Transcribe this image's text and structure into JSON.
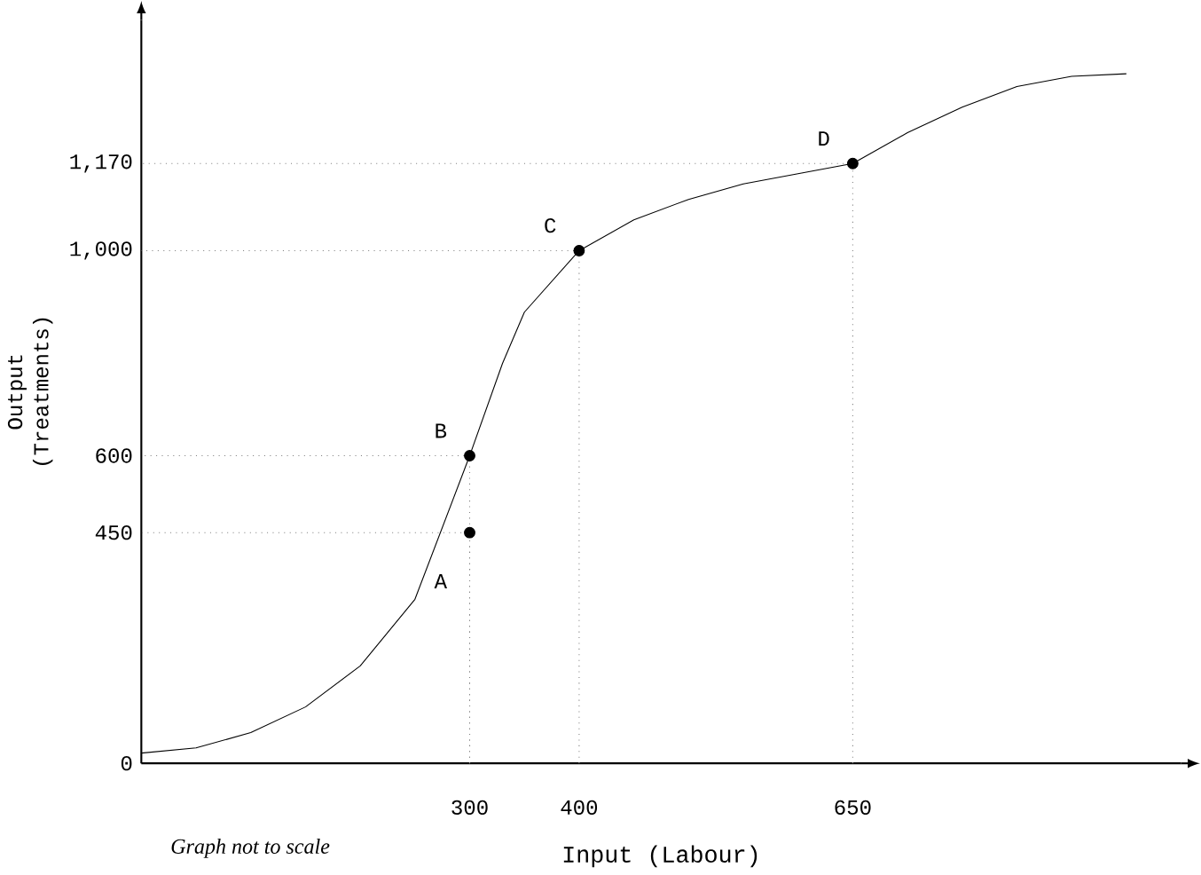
{
  "chart_data": {
    "type": "line",
    "xlabel": "Input (Labour)",
    "ylabel": "Output\n(Treatments)",
    "xlim": [
      0,
      950
    ],
    "ylim": [
      0,
      1450
    ],
    "xticks": [
      300,
      400,
      650
    ],
    "yticks": [
      0,
      450,
      600,
      {
        "value": 1000,
        "label": "1,000"
      },
      {
        "value": 1170,
        "label": "1,170"
      }
    ],
    "series": [
      {
        "color": "#808080",
        "marker": "none",
        "line_style": "dotted",
        "x": [
          300,
          300,
          0
        ],
        "values": [
          0,
          450,
          450
        ]
      },
      {
        "color": "#808080",
        "marker": "none",
        "line_style": "dotted",
        "x": [
          300,
          300,
          0
        ],
        "values": [
          0,
          600,
          600
        ]
      },
      {
        "color": "#808080",
        "marker": "none",
        "line_style": "dotted",
        "x": [
          400,
          400,
          0
        ],
        "values": [
          0,
          1000,
          1000
        ]
      },
      {
        "color": "#808080",
        "marker": "none",
        "line_style": "dotted",
        "x": [
          650,
          650,
          0
        ],
        "values": [
          0,
          1170,
          1170
        ]
      },
      {
        "color": "#000000",
        "marker": "none",
        "x": [
          0,
          50,
          100,
          150,
          200,
          250,
          300,
          330,
          350,
          400,
          450,
          500,
          550,
          600,
          650,
          700,
          750,
          800,
          850,
          900
        ],
        "values": [
          20,
          30,
          60,
          110,
          190,
          320,
          600,
          780,
          880,
          1000,
          1060,
          1100,
          1130,
          1150,
          1170,
          1230,
          1280,
          1320,
          1340,
          1345
        ]
      },
      {
        "type": "scatter",
        "color": "#000000",
        "marker": "circle",
        "x": [
          300,
          300,
          400,
          650
        ],
        "values": [
          450,
          600,
          1000,
          1170
        ]
      }
    ],
    "annotations": [
      {
        "text": "A",
        "x": 300,
        "y": 450
      },
      {
        "text": "B",
        "x": 300,
        "y": 600
      },
      {
        "text": "C",
        "x": 400,
        "y": 1000
      },
      {
        "text": "D",
        "x": 650,
        "y": 1170
      },
      "Graph not to scale"
    ]
  }
}
